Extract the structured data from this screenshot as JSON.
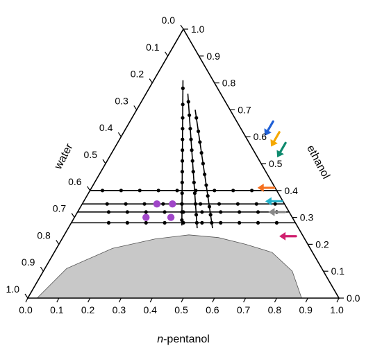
{
  "chart_data": {
    "type": "ternary",
    "title": "",
    "axes": {
      "bottom": {
        "label_prefix": "n",
        "label_suffix": "-pentanol",
        "ticks": [
          "0.0",
          "0.1",
          "0.2",
          "0.3",
          "0.4",
          "0.5",
          "0.6",
          "0.7",
          "0.8",
          "0.9",
          "1.0"
        ]
      },
      "left": {
        "label": "water",
        "ticks": [
          "0.0",
          "0.1",
          "0.2",
          "0.3",
          "0.4",
          "0.5",
          "0.6",
          "0.7",
          "0.8",
          "0.9",
          "1.0"
        ]
      },
      "right": {
        "label": "ethanol",
        "ticks": [
          "0.0",
          "0.1",
          "0.2",
          "0.3",
          "0.4",
          "0.5",
          "0.6",
          "0.7",
          "0.8",
          "0.9",
          "1.0"
        ]
      }
    },
    "binodal_region": {
      "fill": "#c8c8c8",
      "boundary": [
        {
          "pentanol": 0.03,
          "ethanol": 0.0
        },
        {
          "pentanol": 0.07,
          "ethanol": 0.11
        },
        {
          "pentanol": 0.18,
          "ethanol": 0.185
        },
        {
          "pentanol": 0.3,
          "ethanol": 0.22
        },
        {
          "pentanol": 0.4,
          "ethanol": 0.235
        },
        {
          "pentanol": 0.5,
          "ethanol": 0.225
        },
        {
          "pentanol": 0.6,
          "ethanol": 0.2
        },
        {
          "pentanol": 0.7,
          "ethanol": 0.17
        },
        {
          "pentanol": 0.8,
          "ethanol": 0.1
        },
        {
          "pentanol": 0.88,
          "ethanol": 0.0
        }
      ]
    },
    "constant_ethanol_lines": [
      {
        "ethanol": 0.4,
        "pentanol_points": [
          0.04,
          0.1,
          0.16,
          0.22,
          0.28,
          0.34,
          0.4,
          0.46,
          0.52
        ]
      },
      {
        "ethanol": 0.35,
        "pentanol_points": [
          0.08,
          0.14,
          0.2,
          0.26,
          0.32,
          0.38,
          0.44,
          0.5,
          0.56,
          0.62
        ]
      },
      {
        "ethanol": 0.32,
        "pentanol_points": [
          0.1,
          0.16,
          0.22,
          0.28,
          0.34,
          0.4,
          0.46,
          0.52,
          0.58,
          0.64
        ]
      },
      {
        "ethanol": 0.28,
        "pentanol_points": [
          0.12,
          0.18,
          0.24,
          0.3,
          0.36,
          0.42,
          0.48,
          0.54,
          0.6,
          0.66
        ]
      }
    ],
    "dilution_lines": [
      {
        "pentanol_end": 0.37,
        "ethanol_points": [
          0.29,
          0.32,
          0.35,
          0.39,
          0.43,
          0.47,
          0.51,
          0.55,
          0.59,
          0.63,
          0.67,
          0.72,
          0.78
        ]
      },
      {
        "pentanol_end": 0.42,
        "ethanol_points": [
          0.28,
          0.31,
          0.35,
          0.39,
          0.43,
          0.47,
          0.51,
          0.55,
          0.59,
          0.63,
          0.68,
          0.73
        ]
      },
      {
        "pentanol_end": 0.47,
        "ethanol_points": [
          0.28,
          0.31,
          0.34,
          0.38,
          0.42,
          0.46,
          0.5,
          0.54,
          0.58,
          0.62,
          0.67
        ]
      }
    ],
    "highlighted_points": {
      "color": "#a046c8",
      "points": [
        {
          "pentanol": 0.24,
          "ethanol": 0.35
        },
        {
          "pentanol": 0.29,
          "ethanol": 0.35
        },
        {
          "pentanol": 0.23,
          "ethanol": 0.3
        },
        {
          "pentanol": 0.31,
          "ethanol": 0.3
        }
      ]
    },
    "arrows": [
      {
        "color": "#1f5fd6",
        "pentanol": 0.46,
        "ethanol": 0.63,
        "direction": "down-left"
      },
      {
        "color": "#f5a800",
        "pentanol": 0.5,
        "ethanol": 0.59,
        "direction": "down-left"
      },
      {
        "color": "#0e8a6e",
        "pentanol": 0.54,
        "ethanol": 0.55,
        "direction": "down-left"
      },
      {
        "color": "#f5701f",
        "pentanol": 0.56,
        "ethanol": 0.41,
        "direction": "left"
      },
      {
        "color": "#1fb0c8",
        "pentanol": 0.61,
        "ethanol": 0.36,
        "direction": "left"
      },
      {
        "color": "#888888",
        "pentanol": 0.64,
        "ethanol": 0.32,
        "direction": "left"
      },
      {
        "color": "#d01f6e",
        "pentanol": 0.72,
        "ethanol": 0.23,
        "direction": "left"
      }
    ]
  }
}
